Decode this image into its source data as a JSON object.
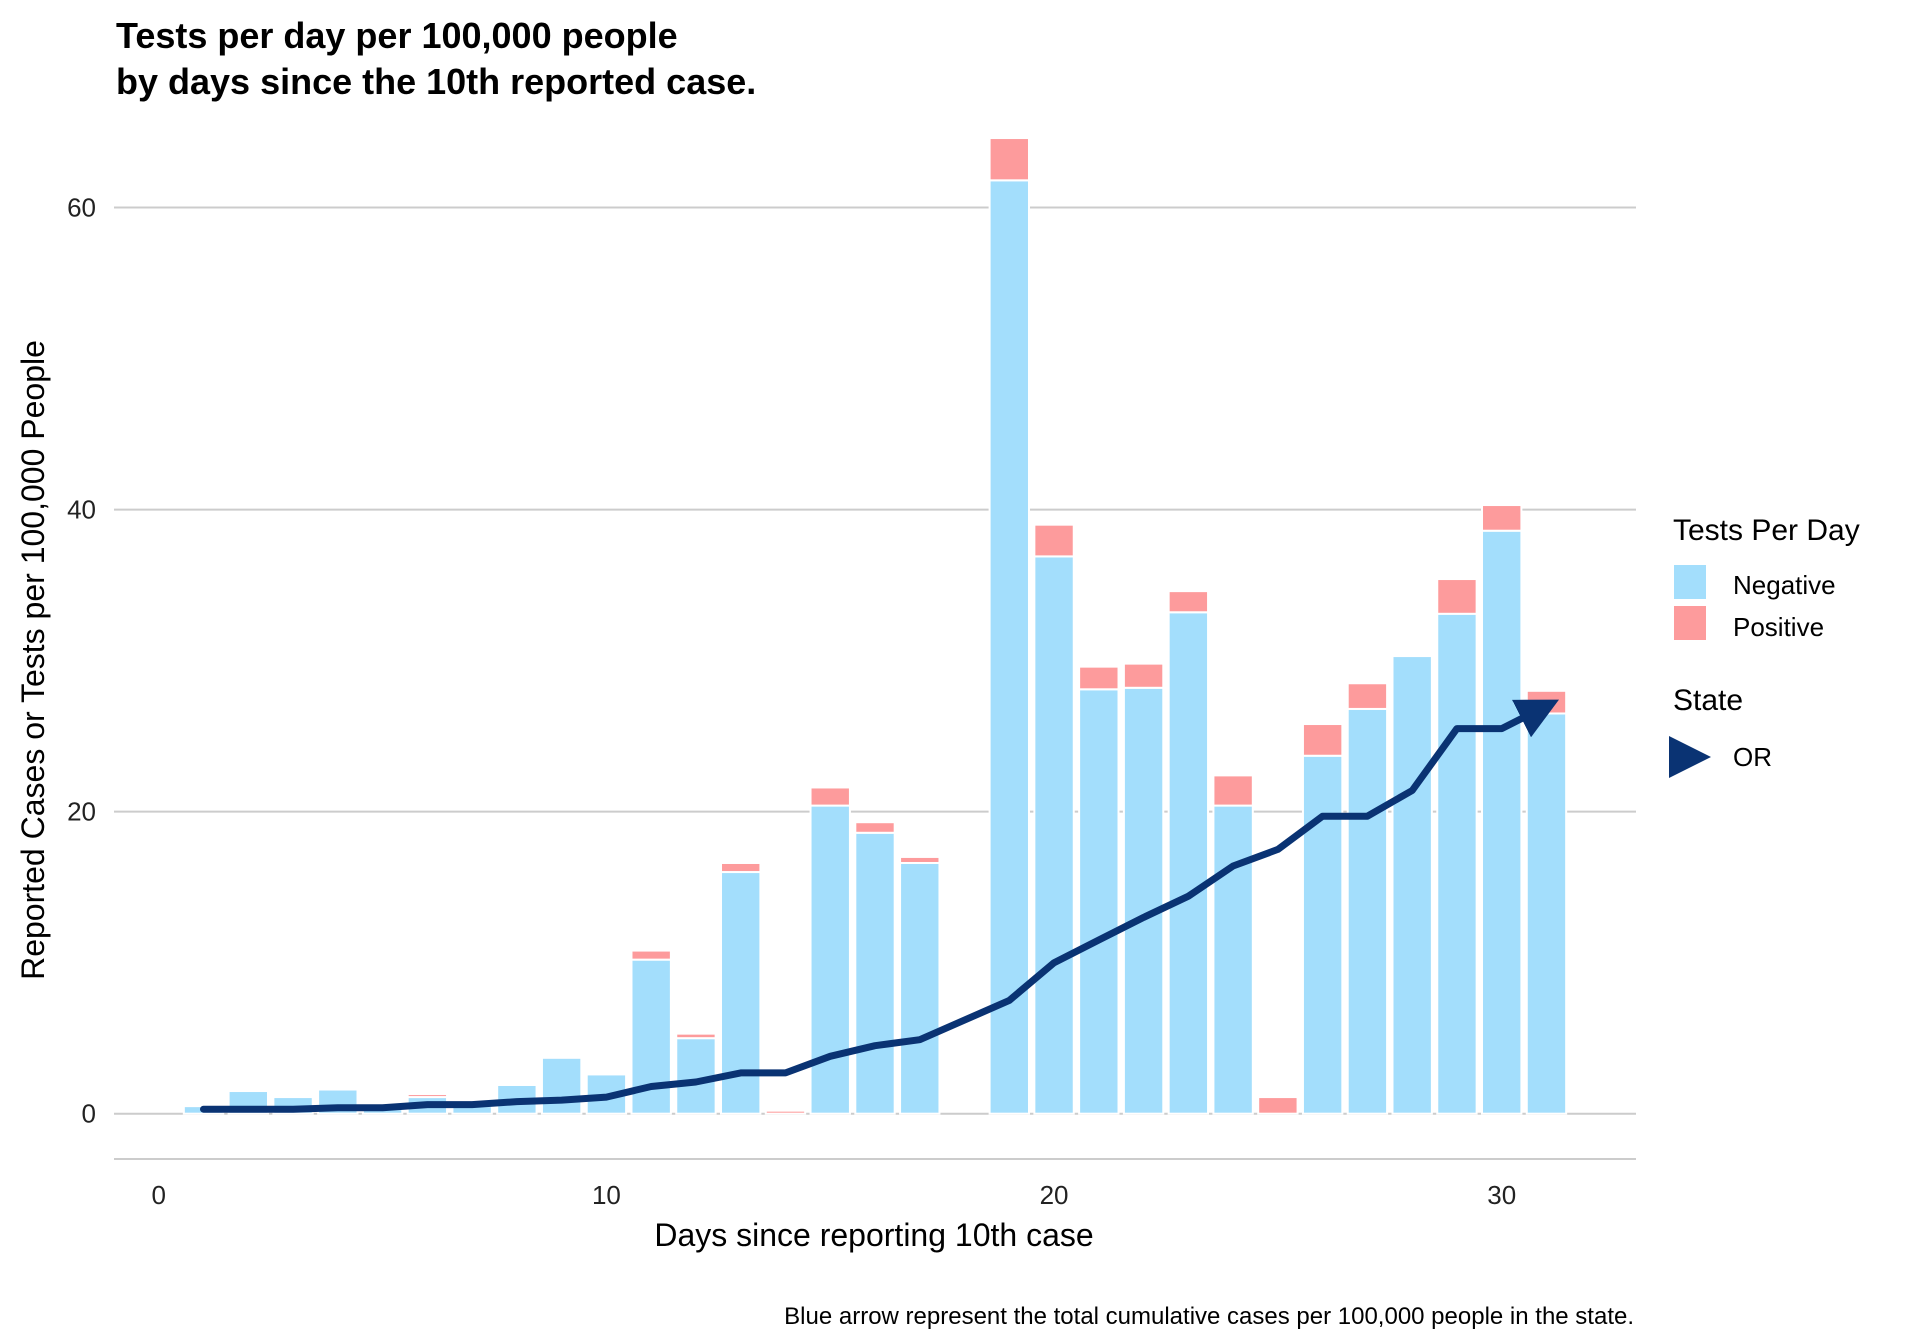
{
  "chart_data": {
    "type": "bar",
    "title_lines": [
      "Tests per day per 100,000 people",
      "by days since the 10th reported case."
    ],
    "xlabel": "Days since reporting 10th case",
    "ylabel": "Reported Cases or Tests per 100,000 People",
    "caption": "Blue arrow represent the total cumulative cases per 100,000 people in the state.",
    "xlim": [
      -1,
      33
    ],
    "ylim": [
      -3,
      65
    ],
    "x_ticks": [
      0,
      10,
      20,
      30
    ],
    "y_ticks": [
      0,
      20,
      40,
      60
    ],
    "grid": "horizontal",
    "stacked": true,
    "legend_position": "right",
    "legend": {
      "fill_title": "Tests Per Day",
      "fill_items": [
        "Negative",
        "Positive"
      ],
      "line_title": "State",
      "line_items": [
        "OR"
      ]
    },
    "colors": {
      "negative": "#A3DEFC",
      "positive": "#FD9B9C",
      "line": "#0A3373",
      "grid": "#CCCCCC"
    },
    "x": [
      1,
      2,
      3,
      4,
      5,
      6,
      7,
      8,
      9,
      10,
      11,
      12,
      13,
      14,
      15,
      16,
      17,
      18,
      19,
      20,
      21,
      22,
      23,
      24,
      25,
      26,
      27,
      28,
      29,
      30,
      31
    ],
    "series": [
      {
        "name": "Negative",
        "values": [
          0.5,
          1.5,
          1.1,
          1.6,
          0.3,
          1.1,
          0.5,
          1.9,
          3.7,
          2.6,
          10.2,
          5.0,
          16.0,
          0.0,
          20.4,
          18.6,
          16.6,
          0.0,
          61.8,
          36.9,
          28.1,
          28.2,
          33.2,
          20.4,
          0.0,
          23.7,
          26.8,
          30.3,
          33.1,
          38.6,
          26.5
        ]
      },
      {
        "name": "Positive",
        "values": [
          0.0,
          0.0,
          0.0,
          0.0,
          0.0,
          0.2,
          0.0,
          0.0,
          0.0,
          0.0,
          0.6,
          0.3,
          0.6,
          0.2,
          1.2,
          0.7,
          0.4,
          0.0,
          2.8,
          2.1,
          1.5,
          1.6,
          1.4,
          2.0,
          1.1,
          2.1,
          1.7,
          0.0,
          2.3,
          1.7,
          1.5
        ]
      }
    ],
    "line": {
      "name": "OR",
      "arrow": true,
      "values": [
        0.3,
        0.3,
        0.3,
        0.4,
        0.4,
        0.6,
        0.6,
        0.8,
        0.9,
        1.1,
        1.8,
        2.1,
        2.7,
        2.7,
        3.8,
        4.5,
        4.9,
        6.2,
        7.5,
        10.0,
        11.5,
        13.0,
        14.4,
        16.4,
        17.5,
        19.7,
        19.7,
        21.4,
        25.5,
        25.5,
        27.0
      ]
    }
  }
}
